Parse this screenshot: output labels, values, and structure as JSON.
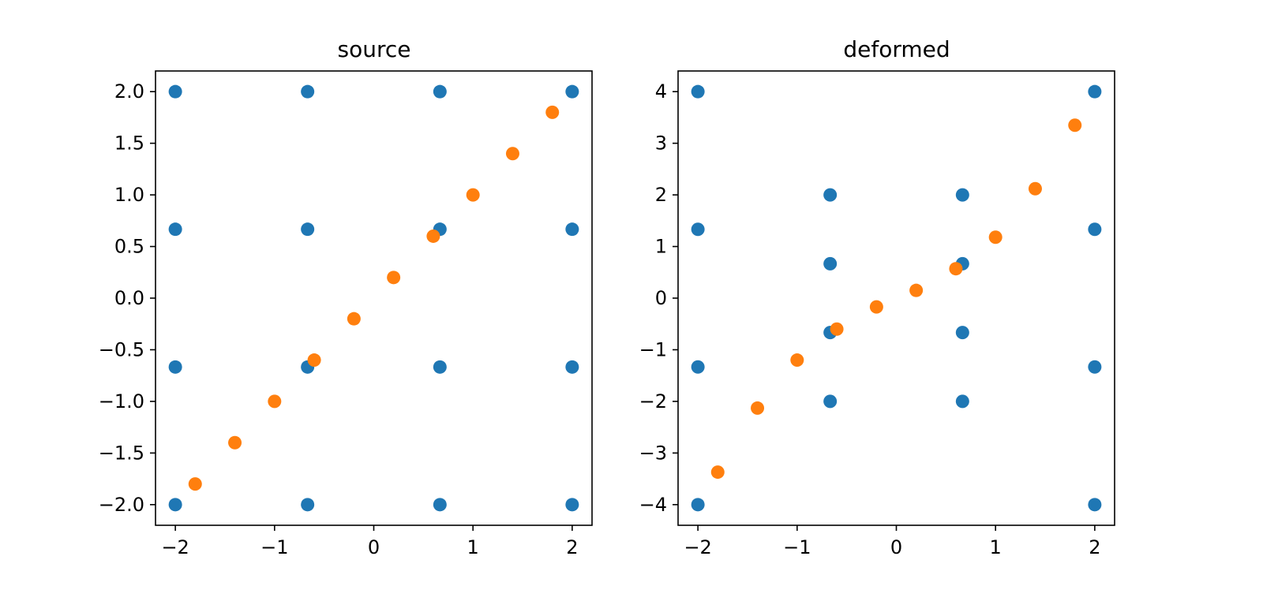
{
  "chart_data": [
    {
      "type": "scatter",
      "title": "source",
      "xlabel": "",
      "ylabel": "",
      "xlim": [
        -2.2,
        2.2
      ],
      "ylim": [
        -2.2,
        2.2
      ],
      "xticks": [
        -2,
        -1,
        0,
        1,
        2
      ],
      "xtick_labels": [
        "−2",
        "−1",
        "0",
        "1",
        "2"
      ],
      "yticks": [
        -2.0,
        -1.5,
        -1.0,
        -0.5,
        0.0,
        0.5,
        1.0,
        1.5,
        2.0
      ],
      "ytick_labels": [
        "−2.0",
        "−1.5",
        "−1.0",
        "−0.5",
        "0.0",
        "0.5",
        "1.0",
        "1.5",
        "2.0"
      ],
      "grid": false,
      "series": [
        {
          "color": "#1f77b4",
          "points": [
            [
              -2,
              -2
            ],
            [
              -0.667,
              -2
            ],
            [
              0.667,
              -2
            ],
            [
              2,
              -2
            ],
            [
              -2,
              -0.667
            ],
            [
              -0.667,
              -0.667
            ],
            [
              0.667,
              -0.667
            ],
            [
              2,
              -0.667
            ],
            [
              -2,
              0.667
            ],
            [
              -0.667,
              0.667
            ],
            [
              0.667,
              0.667
            ],
            [
              2,
              0.667
            ],
            [
              -2,
              2
            ],
            [
              -0.667,
              2
            ],
            [
              0.667,
              2
            ],
            [
              2,
              2
            ]
          ]
        },
        {
          "color": "#ff7f0e",
          "points": [
            [
              -1.8,
              -1.8
            ],
            [
              -1.4,
              -1.4
            ],
            [
              -1.0,
              -1.0
            ],
            [
              -0.6,
              -0.6
            ],
            [
              -0.2,
              -0.2
            ],
            [
              0.2,
              0.2
            ],
            [
              0.6,
              0.6
            ],
            [
              1.0,
              1.0
            ],
            [
              1.4,
              1.4
            ],
            [
              1.8,
              1.8
            ]
          ]
        }
      ]
    },
    {
      "type": "scatter",
      "title": "deformed",
      "xlabel": "",
      "ylabel": "",
      "xlim": [
        -2.2,
        2.2
      ],
      "ylim": [
        -4.4,
        4.4
      ],
      "xticks": [
        -2,
        -1,
        0,
        1,
        2
      ],
      "xtick_labels": [
        "−2",
        "−1",
        "0",
        "1",
        "2"
      ],
      "yticks": [
        -4,
        -3,
        -2,
        -1,
        0,
        1,
        2,
        3,
        4
      ],
      "ytick_labels": [
        "−4",
        "−3",
        "−2",
        "−1",
        "0",
        "1",
        "2",
        "3",
        "4"
      ],
      "grid": false,
      "series": [
        {
          "color": "#1f77b4",
          "points": [
            [
              -2,
              -4
            ],
            [
              -0.667,
              -2
            ],
            [
              0.667,
              -2
            ],
            [
              2,
              -4
            ],
            [
              -2,
              -1.333
            ],
            [
              -0.667,
              -0.667
            ],
            [
              0.667,
              -0.667
            ],
            [
              2,
              -1.333
            ],
            [
              -2,
              1.333
            ],
            [
              -0.667,
              0.667
            ],
            [
              0.667,
              0.667
            ],
            [
              2,
              1.333
            ],
            [
              -2,
              4
            ],
            [
              -0.667,
              2
            ],
            [
              0.667,
              2
            ],
            [
              2,
              4
            ]
          ]
        },
        {
          "color": "#ff7f0e",
          "points": [
            [
              -1.8,
              -3.37
            ],
            [
              -1.4,
              -2.13
            ],
            [
              -1.0,
              -1.2
            ],
            [
              -0.6,
              -0.6
            ],
            [
              -0.2,
              -0.17
            ],
            [
              0.2,
              0.15
            ],
            [
              0.6,
              0.57
            ],
            [
              1.0,
              1.18
            ],
            [
              1.4,
              2.12
            ],
            [
              1.8,
              3.35
            ]
          ]
        }
      ]
    }
  ]
}
